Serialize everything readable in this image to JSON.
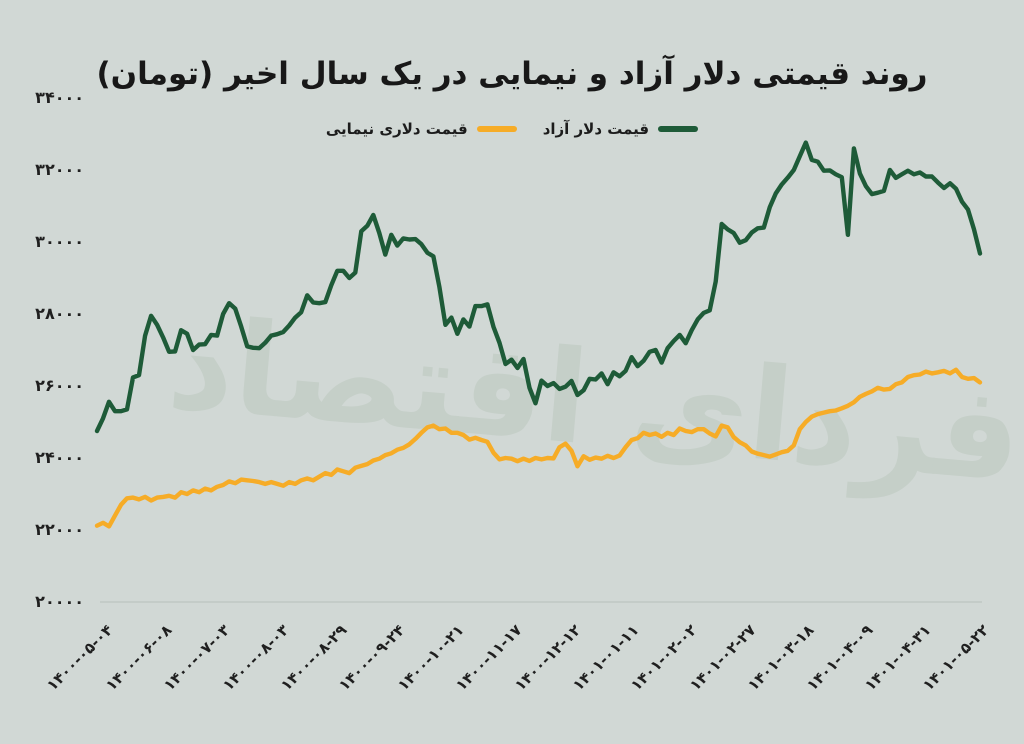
{
  "title": "روند قیمتی دلار آزاد و نیمایی در یک سال اخیر (تومان)",
  "watermark": "فردای اقتصاد",
  "legend": {
    "items": [
      {
        "label": "قیمت دلار آزاد",
        "color": "#1e5b38"
      },
      {
        "label": "قیمت دلاری نیمایی",
        "color": "#f6ac27"
      }
    ]
  },
  "colors": {
    "background": "#d1d8d5",
    "free_dollar_line": "#1e5b38",
    "nima_dollar_line": "#f6ac27",
    "axis_line": "#bcc4c1",
    "text": "#1f1f1f",
    "watermark": "#c5cfc8"
  },
  "chart_data": {
    "type": "line",
    "title": "روند قیمتی دلار آزاد و نیمایی در یک سال اخیر (تومان)",
    "xlabel": "",
    "ylabel": "",
    "ylim": [
      20000,
      34000
    ],
    "grid": false,
    "legend_position": "top-center",
    "y_ticks": [
      {
        "value": 34000,
        "label": "۳۴۰۰۰"
      },
      {
        "value": 32000,
        "label": "۳۲۰۰۰"
      },
      {
        "value": 30000,
        "label": "۳۰۰۰۰"
      },
      {
        "value": 28000,
        "label": "۲۸۰۰۰"
      },
      {
        "value": 26000,
        "label": "۲۶۰۰۰"
      },
      {
        "value": 24000,
        "label": "۲۴۰۰۰"
      },
      {
        "value": 22000,
        "label": "۲۲۰۰۰"
      },
      {
        "value": 20000,
        "label": "۲۰۰۰۰"
      }
    ],
    "x_ticks": [
      "۱۴۰۰-۰۵-۰۴",
      "۱۴۰۰-۰۶-۰۸",
      "۱۴۰۰-۰۷-۰۳",
      "۱۴۰۰-۰۸-۰۳",
      "۱۴۰۰-۰۸-۲۹",
      "۱۴۰۰-۰۹-۲۴",
      "۱۴۰۰-۱۰-۲۱",
      "۱۴۰۰-۱۱-۱۷",
      "۱۴۰۰-۱۲-۱۲",
      "۱۴۰۱-۰۱-۱۱",
      "۱۴۰۱-۰۲-۰۲",
      "۱۴۰۱-۰۲-۲۷",
      "۱۴۰۱-۰۳-۱۸",
      "۱۴۰۱-۰۴-۰۹",
      "۱۴۰۱-۰۴-۳۱",
      "۱۴۰۱-۰۵-۲۲"
    ],
    "x_range_note": "daily values, evenly spaced from 1400-05-04 to 1401-05-22",
    "series": [
      {
        "name": "قیمت دلار آزاد",
        "color": "#1e5b38",
        "values": [
          24750,
          25100,
          25560,
          25300,
          25300,
          25350,
          26240,
          26300,
          27400,
          27950,
          27700,
          27350,
          26950,
          26960,
          27550,
          27450,
          27000,
          27150,
          27160,
          27420,
          27400,
          28000,
          28300,
          28150,
          27650,
          27100,
          27060,
          27050,
          27200,
          27400,
          27440,
          27500,
          27680,
          27900,
          28050,
          28520,
          28320,
          28300,
          28330,
          28800,
          29200,
          29200,
          29000,
          29150,
          30300,
          30450,
          30750,
          30250,
          29650,
          30200,
          29900,
          30100,
          30070,
          30080,
          29940,
          29700,
          29600,
          28750,
          27700,
          27900,
          27450,
          27850,
          27650,
          28220,
          28220,
          28270,
          27650,
          27200,
          26610,
          26730,
          26500,
          26750,
          25950,
          25520,
          26150,
          26000,
          26080,
          25920,
          25980,
          26140,
          25750,
          25880,
          26200,
          26180,
          26350,
          26050,
          26380,
          26270,
          26420,
          26800,
          26550,
          26700,
          26950,
          27000,
          26650,
          27050,
          27250,
          27420,
          27190,
          27550,
          27850,
          28030,
          28100,
          28900,
          30500,
          30350,
          30250,
          29980,
          30050,
          30260,
          30380,
          30400,
          30970,
          31350,
          31600,
          31790,
          32000,
          32380,
          32760,
          32280,
          32230,
          31980,
          31990,
          31880,
          31800,
          30200,
          32600,
          31900,
          31550,
          31330,
          31370,
          31420,
          32000,
          31780,
          31880,
          31980,
          31880,
          31930,
          31820,
          31820,
          31650,
          31500,
          31630,
          31480,
          31120,
          30900,
          30350,
          29680
        ]
      },
      {
        "name": "قیمت دلاری نیمایی",
        "color": "#f6ac27",
        "values": [
          22120,
          22200,
          22100,
          22400,
          22700,
          22880,
          22900,
          22850,
          22920,
          22820,
          22900,
          22920,
          22950,
          22900,
          23050,
          23000,
          23100,
          23050,
          23150,
          23100,
          23200,
          23250,
          23350,
          23300,
          23400,
          23380,
          23360,
          23330,
          23280,
          23330,
          23280,
          23230,
          23330,
          23280,
          23380,
          23430,
          23380,
          23480,
          23580,
          23530,
          23680,
          23630,
          23580,
          23730,
          23780,
          23830,
          23930,
          23980,
          24080,
          24130,
          24230,
          24280,
          24380,
          24530,
          24700,
          24850,
          24900,
          24800,
          24820,
          24700,
          24700,
          24640,
          24510,
          24560,
          24500,
          24450,
          24150,
          23960,
          24000,
          23980,
          23910,
          23980,
          23920,
          24000,
          23960,
          24000,
          23990,
          24300,
          24400,
          24200,
          23770,
          24050,
          23950,
          24010,
          23980,
          24060,
          24000,
          24070,
          24300,
          24500,
          24550,
          24700,
          24640,
          24680,
          24590,
          24700,
          24640,
          24820,
          24750,
          24720,
          24800,
          24800,
          24680,
          24600,
          24900,
          24850,
          24580,
          24440,
          24350,
          24180,
          24120,
          24080,
          24040,
          24100,
          24160,
          24200,
          24350,
          24800,
          25000,
          25150,
          25220,
          25260,
          25300,
          25320,
          25380,
          25450,
          25550,
          25700,
          25780,
          25850,
          25950,
          25900,
          25920,
          26050,
          26100,
          26250,
          26300,
          26320,
          26400,
          26350,
          26380,
          26420,
          26350,
          26450,
          26250,
          26200,
          26220,
          26100
        ]
      }
    ]
  }
}
